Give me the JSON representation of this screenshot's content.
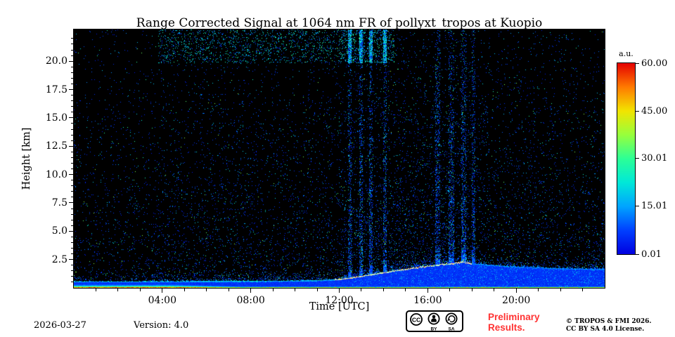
{
  "colors": {
    "plot_background": "#000000",
    "frame": "#000000",
    "preliminary_text": "#ff3333",
    "text": "#000000"
  },
  "footer": {
    "date": "2026-03-27",
    "version": "Version: 4.0",
    "preliminary_line1": "Preliminary",
    "preliminary_line2": "Results.",
    "copyright_line1": "© TROPOS & FMI 2026.",
    "copyright_line2": "CC BY SA 4.0 License.",
    "badge_cc": "CC",
    "badge_by": "BY",
    "badge_sa": "SA"
  },
  "chart_data": {
    "type": "heatmap",
    "title": "Range Corrected Signal at 1064 nm FR of pollyxt_tropos at Kuopio",
    "xlabel": "Time [UTC]",
    "ylabel": "Height [km]",
    "colorbar_label": "a.u.",
    "x_range_hours": [
      0,
      24
    ],
    "y_range_km": [
      0,
      22.8
    ],
    "value_range": [
      0.01,
      60
    ],
    "x_ticks": [
      {
        "hour": 4,
        "label": "04:00"
      },
      {
        "hour": 8,
        "label": "08:00"
      },
      {
        "hour": 12,
        "label": "12:00"
      },
      {
        "hour": 16,
        "label": "16:00"
      },
      {
        "hour": 20,
        "label": "20:00"
      }
    ],
    "y_ticks": [
      {
        "km": 2.5,
        "label": "2.5"
      },
      {
        "km": 5,
        "label": "5.0"
      },
      {
        "km": 7.5,
        "label": "7.5"
      },
      {
        "km": 10,
        "label": "10.0"
      },
      {
        "km": 12.5,
        "label": "12.5"
      },
      {
        "km": 15,
        "label": "15.0"
      },
      {
        "km": 17.5,
        "label": "17.5"
      },
      {
        "km": 20,
        "label": "20.0"
      }
    ],
    "colorbar_ticks": [
      {
        "value": 60,
        "label": "60.00"
      },
      {
        "value": 45,
        "label": "45.00"
      },
      {
        "value": 30.01,
        "label": "30.01"
      },
      {
        "value": 15.01,
        "label": "15.01"
      },
      {
        "value": 0.01,
        "label": "0.01"
      }
    ],
    "colormap": "jet",
    "colormap_stops": [
      [
        0,
        "#0000e0"
      ],
      [
        0.125,
        "#0040ff"
      ],
      [
        0.25,
        "#00a4ff"
      ],
      [
        0.375,
        "#00e8d8"
      ],
      [
        0.5,
        "#2cff96"
      ],
      [
        0.625,
        "#97ff3c"
      ],
      [
        0.75,
        "#f2e400"
      ],
      [
        0.875,
        "#ff7a00"
      ],
      [
        1,
        "#e40000"
      ]
    ],
    "grid": false,
    "legend": "colorbar-right",
    "description": "Lidar quicklook: black background with sparse signal speckles, dense blue aerosol layer below ~0.6 km rising after 12:00 UTC to ~2.3 km by 17:30 with bright whitish top edge, strong orange-red surface return, enhanced green speckle band near 20-22.8 km between ~04:00 and ~14:30, denser speckle columns 12:30-18:00",
    "boundary_layer_top_km": [
      [
        0,
        0.58
      ],
      [
        3,
        0.58
      ],
      [
        6,
        0.6
      ],
      [
        9,
        0.63
      ],
      [
        11,
        0.68
      ],
      [
        12,
        0.78
      ],
      [
        13,
        1.05
      ],
      [
        14,
        1.38
      ],
      [
        15,
        1.68
      ],
      [
        16,
        1.95
      ],
      [
        17,
        2.18
      ],
      [
        17.6,
        2.3
      ],
      [
        18.2,
        2.15
      ],
      [
        19,
        2.0
      ],
      [
        20,
        1.9
      ],
      [
        21,
        1.8
      ],
      [
        22,
        1.75
      ],
      [
        23,
        1.7
      ],
      [
        24,
        1.68
      ]
    ],
    "surface_band": {
      "thickness_early_km": 0.3,
      "thickness_km": 0.12,
      "early_until_hour": 4.5,
      "taper_until_hour": 7.5
    },
    "noise": {
      "upper_band": {
        "km": [
          19.8,
          22.8
        ],
        "hours": [
          3.8,
          14.5
        ],
        "extra_density": 0.09
      },
      "dense_columns_hours": [
        [
          12.4,
          12.55
        ],
        [
          12.9,
          13.05
        ],
        [
          13.35,
          13.5
        ],
        [
          14.0,
          14.15
        ],
        [
          16.35,
          16.55
        ],
        [
          16.95,
          17.2
        ],
        [
          17.5,
          17.75
        ],
        [
          18.0,
          18.15
        ]
      ],
      "column_boost": 5,
      "midday_boost_hours": [
        12,
        18.5
      ],
      "midday_boost": 1.6,
      "seed": 12345
    }
  }
}
